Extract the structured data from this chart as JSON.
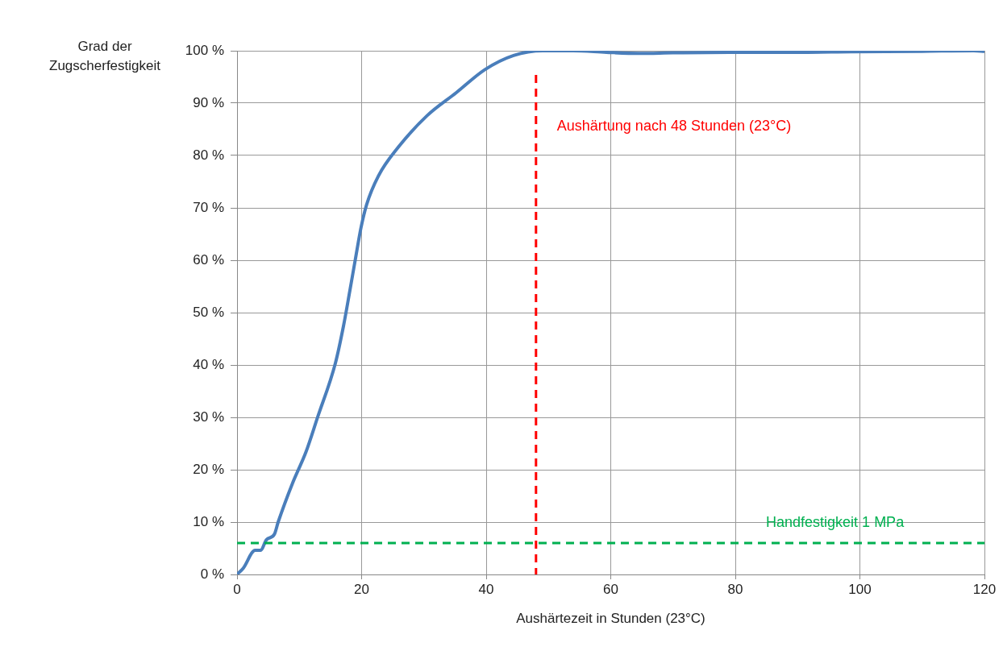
{
  "chart_data": {
    "type": "line",
    "xlabel": "Aushärtezeit in Stunden (23°C)",
    "ylabel": "Grad der Zugscherfestigkeit",
    "series": [
      {
        "color": "#4a7ebb",
        "x": [
          0,
          1,
          2.9,
          3.8,
          4.7,
          6,
          6.6,
          8.9,
          11.1,
          12.9,
          15.8,
          17.1,
          18.1,
          19,
          19.9,
          20.8,
          22.7,
          25.9,
          30.5,
          35.2,
          39.8,
          44.4,
          49.1,
          50,
          54,
          59.3,
          64.5,
          70,
          79,
          90,
          98.6,
          110,
          118.3,
          120
        ],
        "values": [
          0,
          1.2,
          4.6,
          4.6,
          6.6,
          7.7,
          10,
          17.4,
          23.5,
          29.9,
          40.4,
          47.5,
          54.1,
          60.2,
          66.2,
          70.6,
          76.1,
          81.6,
          87.6,
          92,
          96.4,
          99.1,
          100,
          100,
          100,
          99.7,
          99.5,
          99.6,
          99.7,
          99.7,
          99.8,
          99.9,
          100,
          99.9
        ]
      }
    ],
    "xlim": [
      0,
      120
    ],
    "xticks": [
      0,
      20,
      40,
      60,
      80,
      100,
      120
    ],
    "ylim": [
      0,
      100
    ],
    "yticks": [
      {
        "value": 0,
        "label": "0 %"
      },
      {
        "value": 10,
        "label": "10 %"
      },
      {
        "value": 20,
        "label": "20 %"
      },
      {
        "value": 30,
        "label": "30 %"
      },
      {
        "value": 40,
        "label": "40 %"
      },
      {
        "value": 50,
        "label": "50 %"
      },
      {
        "value": 60,
        "label": "60 %"
      },
      {
        "value": 70,
        "label": "70 %"
      },
      {
        "value": 80,
        "label": "80 %"
      },
      {
        "value": 90,
        "label": "90 %"
      },
      {
        "value": 100,
        "label": "100 %"
      }
    ],
    "grid": true,
    "marker": "none",
    "line_style": "solid",
    "legend": false,
    "ref_lines": [
      {
        "axis": "x",
        "value": 48,
        "label": "Aushärtung nach 48 Stunden (23°C)",
        "color": "#ff0000",
        "line_style": "dashed"
      },
      {
        "axis": "y",
        "value": 6,
        "label": "Handfestigkeit 1 MPa",
        "color": "#00b050",
        "line_style": "dashed"
      }
    ]
  }
}
